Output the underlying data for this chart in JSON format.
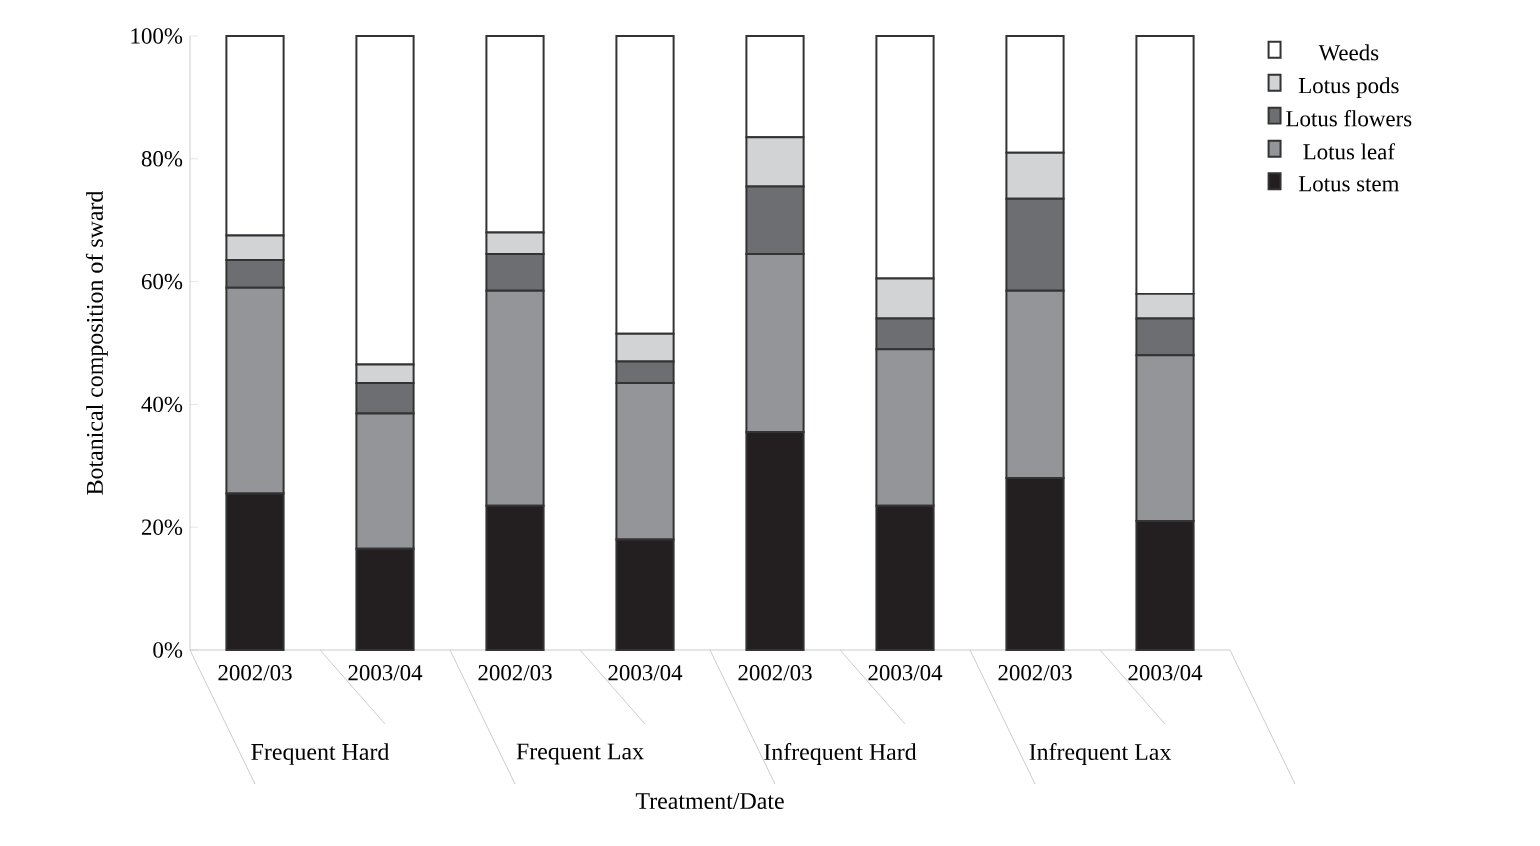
{
  "chart_data": {
    "type": "bar",
    "stacked": true,
    "xlabel": "Treatment/Date",
    "ylabel": "Botanical composition of sward",
    "categories": [
      "2002/03",
      "2003/04",
      "2002/03",
      "2003/04",
      "2002/03",
      "2003/04",
      "2002/03",
      "2003/04"
    ],
    "annotations": [
      "Frequent Hard",
      "Frequent Lax",
      "Infrequent Hard",
      "Infrequent Lax"
    ],
    "series": [
      {
        "name": "Lotus stem",
        "color": "#231f20",
        "values": [
          25.5,
          16.5,
          23.5,
          18,
          35.5,
          23.5,
          28,
          21
        ]
      },
      {
        "name": "Lotus leaf",
        "color": "#939598",
        "values": [
          33.5,
          22,
          35,
          25.5,
          29,
          25.5,
          30.5,
          27
        ]
      },
      {
        "name": "Lotus flowers",
        "color": "#6d6e71",
        "values": [
          4.5,
          5,
          6,
          3.5,
          11,
          5,
          15,
          6
        ]
      },
      {
        "name": "Lotus pods",
        "color": "#d1d3d4",
        "values": [
          4,
          3,
          3.5,
          4.5,
          8,
          6.5,
          7.5,
          4
        ]
      },
      {
        "name": "Weeds",
        "color": "#ffffff",
        "values": [
          32.5,
          53.5,
          32,
          48.5,
          16.5,
          39.5,
          19,
          42
        ]
      }
    ],
    "ylim": [
      0,
      100
    ],
    "yticks": [
      {
        "value": 0,
        "label": "0%"
      },
      {
        "value": 20,
        "label": "20%"
      },
      {
        "value": 40,
        "label": "40%"
      },
      {
        "value": 60,
        "label": "60%"
      },
      {
        "value": 80,
        "label": "80%"
      },
      {
        "value": 100,
        "label": "100%"
      }
    ],
    "legend": "right",
    "grid": false
  }
}
